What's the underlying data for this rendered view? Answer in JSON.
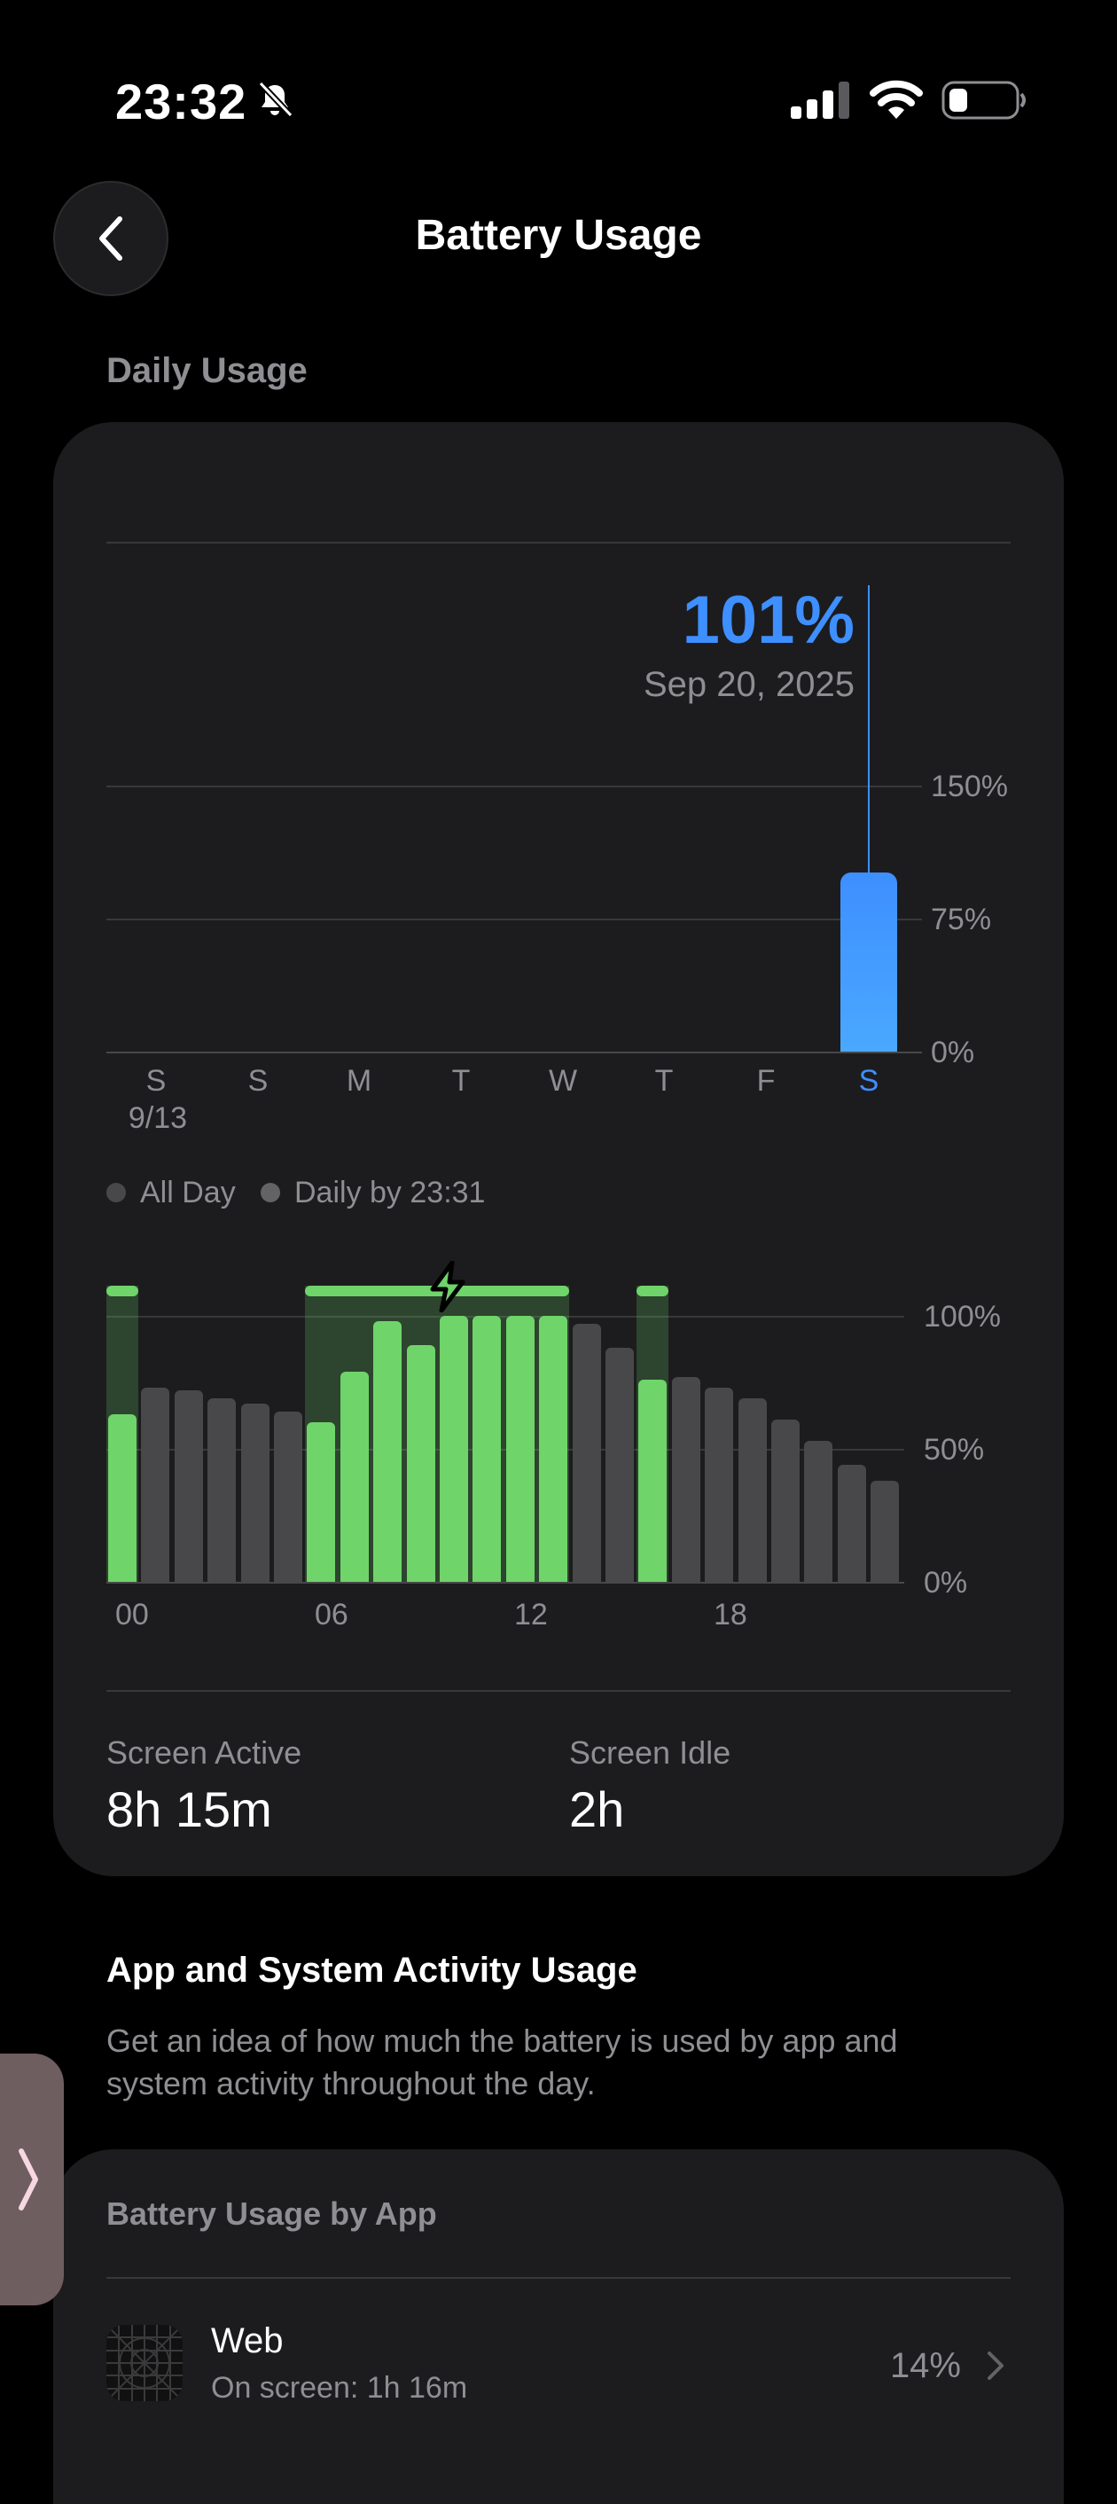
{
  "status_bar": {
    "time": "23:32",
    "mute_icon": "bell-slash-icon",
    "signal_icon": "cellular-signal-icon",
    "wifi_icon": "wifi-icon",
    "battery_icon": "battery-icon"
  },
  "header": {
    "back_icon": "chevron-left-icon",
    "title": "Battery Usage"
  },
  "daily": {
    "section_label": "Daily Usage",
    "selected_value": "101%",
    "selected_date": "Sep 20, 2025",
    "ticks": [
      "150%",
      "75%",
      "0%"
    ],
    "day_labels": [
      "S",
      "S",
      "M",
      "T",
      "W",
      "T",
      "F",
      "S"
    ],
    "first_date": "9/13",
    "accent": "#3e8fff"
  },
  "chart_data": [
    {
      "type": "bar",
      "categories": [
        "S",
        "S",
        "M",
        "T",
        "W",
        "T",
        "F",
        "S"
      ],
      "values": [
        null,
        null,
        null,
        null,
        null,
        null,
        null,
        101
      ],
      "ylim": [
        0,
        225
      ],
      "yticks": [
        "0%",
        "75%",
        "150%"
      ],
      "selected_index": 7,
      "color": "#3e8fff"
    },
    {
      "type": "bar",
      "x_ticks": [
        "00",
        "06",
        "12",
        "18"
      ],
      "yticks": [
        "0%",
        "50%",
        "100%"
      ],
      "ylim": [
        0,
        100
      ],
      "values": [
        63,
        73,
        72,
        69,
        67,
        64,
        60,
        79,
        98,
        89,
        100,
        100,
        100,
        100,
        97,
        88,
        76,
        77,
        73,
        69,
        61,
        53,
        44,
        38
      ],
      "charging": [
        true,
        false,
        false,
        false,
        false,
        false,
        true,
        true,
        true,
        true,
        true,
        true,
        true,
        true,
        false,
        false,
        true,
        false,
        false,
        false,
        false,
        false,
        false,
        false
      ],
      "charging_color": "#6fd46a",
      "discharge_color": "#48484a"
    }
  ],
  "legend": {
    "all_day": "All Day",
    "daily_by": "Daily by 23:31"
  },
  "metrics": {
    "screen_active_label": "Screen Active",
    "screen_active_value": "8h 15m",
    "screen_idle_label": "Screen Idle",
    "screen_idle_value": "2h"
  },
  "activity": {
    "title": "App and System Activity Usage",
    "description": "Get an idea of how much the battery is used by app and system activity throughout the day.",
    "card_title": "Battery Usage by App",
    "apps": [
      {
        "name": "Web",
        "detail": "On screen: 1h 16m",
        "percent": "14%"
      }
    ]
  }
}
